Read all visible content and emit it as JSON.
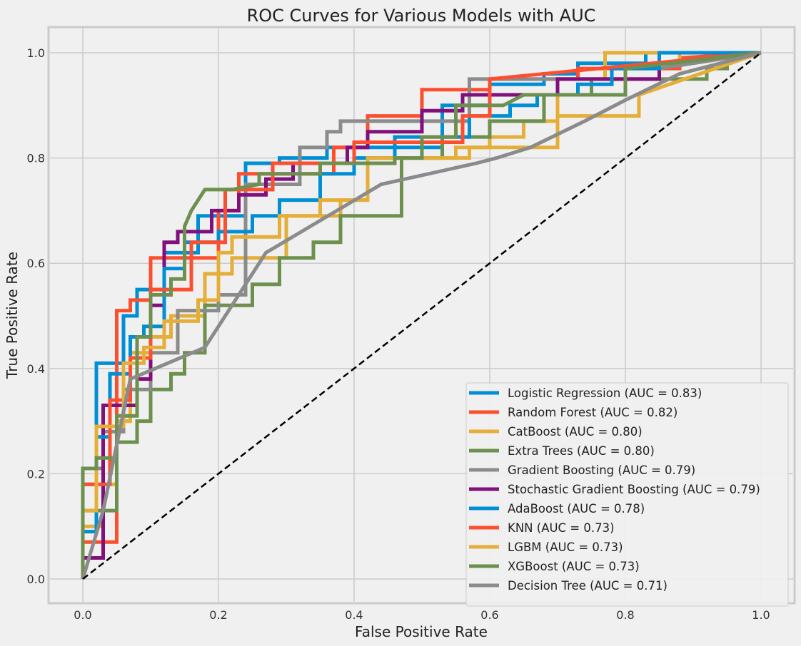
{
  "chart_data": {
    "type": "line",
    "title": "ROC Curves for Various Models with AUC",
    "xlabel": "False Positive Rate",
    "ylabel": "True Positive Rate",
    "xlim": [
      -0.05,
      1.05
    ],
    "ylim": [
      -0.05,
      1.05
    ],
    "xticks": [
      "0.0",
      "0.2",
      "0.4",
      "0.6",
      "0.8",
      "1.0"
    ],
    "yticks": [
      "0.0",
      "0.2",
      "0.4",
      "0.6",
      "0.8",
      "1.0"
    ],
    "grid": true,
    "legend_position": "lower-right",
    "reference_line": {
      "x": [
        0,
        1
      ],
      "y": [
        0,
        1
      ],
      "color": "#000000",
      "style": "dashed"
    },
    "series": [
      {
        "name": "Logistic Regression (AUC = 0.83)",
        "color": "#008fd5",
        "x": [
          0,
          0,
          0.02,
          0.02,
          0.06,
          0.06,
          0.08,
          0.08,
          0.12,
          0.12,
          0.17,
          0.17,
          0.24,
          0.24,
          0.29,
          0.29,
          0.36,
          0.36,
          0.53,
          0.53,
          0.6,
          0.6,
          0.68,
          0.68,
          0.73,
          0.73,
          0.83,
          0.83,
          1.0
        ],
        "y": [
          0,
          0.18,
          0.18,
          0.41,
          0.41,
          0.5,
          0.5,
          0.55,
          0.55,
          0.62,
          0.62,
          0.69,
          0.69,
          0.79,
          0.79,
          0.8,
          0.8,
          0.82,
          0.82,
          0.9,
          0.9,
          0.94,
          0.94,
          0.96,
          0.96,
          0.98,
          0.98,
          1.0,
          1.0
        ]
      },
      {
        "name": "Random Forest (AUC = 0.82)",
        "color": "#fc4f30",
        "x": [
          0,
          0,
          0.05,
          0.05,
          0.07,
          0.07,
          0.1,
          0.1,
          0.2,
          0.2,
          0.23,
          0.23,
          0.37,
          0.37,
          0.42,
          0.42,
          0.5,
          0.5,
          0.6,
          0.6,
          0.73,
          0.73,
          0.88,
          0.88,
          1.0
        ],
        "y": [
          0,
          0.07,
          0.07,
          0.51,
          0.51,
          0.53,
          0.53,
          0.61,
          0.61,
          0.7,
          0.7,
          0.77,
          0.77,
          0.82,
          0.82,
          0.88,
          0.88,
          0.93,
          0.93,
          0.95,
          0.95,
          0.97,
          0.97,
          0.99,
          1.0
        ]
      },
      {
        "name": "CatBoost (AUC = 0.80)",
        "color": "#e5ae38",
        "x": [
          0,
          0,
          0.03,
          0.03,
          0.05,
          0.05,
          0.07,
          0.07,
          0.1,
          0.1,
          0.13,
          0.13,
          0.18,
          0.18,
          0.22,
          0.22,
          0.3,
          0.3,
          0.38,
          0.38,
          0.42,
          0.42,
          0.57,
          0.57,
          0.6,
          0.6,
          0.65,
          0.65,
          0.7,
          0.7,
          0.77,
          0.77,
          0.88,
          0.88,
          1.0
        ],
        "y": [
          0,
          0.1,
          0.1,
          0.18,
          0.18,
          0.3,
          0.3,
          0.43,
          0.43,
          0.46,
          0.46,
          0.5,
          0.5,
          0.58,
          0.58,
          0.61,
          0.61,
          0.69,
          0.69,
          0.72,
          0.72,
          0.8,
          0.8,
          0.82,
          0.82,
          0.84,
          0.84,
          0.87,
          0.87,
          0.95,
          0.95,
          1.0,
          1.0,
          0.98,
          1.0
        ]
      },
      {
        "name": "Extra Trees (AUC = 0.80)",
        "color": "#6d904f",
        "x": [
          0,
          0,
          0.05,
          0.05,
          0.08,
          0.08,
          0.1,
          0.1,
          0.13,
          0.13,
          0.15,
          0.15,
          0.18,
          0.18,
          0.25,
          0.25,
          0.29,
          0.29,
          0.34,
          0.34,
          0.38,
          0.38,
          0.47,
          0.47,
          0.53,
          0.53,
          0.6,
          0.6,
          0.68,
          0.68,
          0.75,
          0.75,
          0.92,
          0.92,
          0.95,
          0.95,
          1.0
        ],
        "y": [
          0,
          0.13,
          0.13,
          0.26,
          0.26,
          0.3,
          0.3,
          0.36,
          0.36,
          0.39,
          0.39,
          0.43,
          0.43,
          0.52,
          0.52,
          0.56,
          0.56,
          0.61,
          0.61,
          0.64,
          0.64,
          0.69,
          0.69,
          0.8,
          0.8,
          0.84,
          0.84,
          0.87,
          0.87,
          0.92,
          0.92,
          0.95,
          0.95,
          0.97,
          0.97,
          1.0,
          1.0
        ]
      },
      {
        "name": "Gradient Boosting (AUC = 0.79)",
        "color": "#8b8b8b",
        "x": [
          0,
          0,
          0.03,
          0.03,
          0.06,
          0.06,
          0.1,
          0.1,
          0.14,
          0.14,
          0.2,
          0.2,
          0.24,
          0.24,
          0.32,
          0.32,
          0.36,
          0.36,
          0.38,
          0.38,
          0.57,
          0.57,
          0.85,
          0.85,
          1.0
        ],
        "y": [
          0,
          0.21,
          0.21,
          0.28,
          0.28,
          0.36,
          0.36,
          0.43,
          0.43,
          0.51,
          0.51,
          0.54,
          0.54,
          0.75,
          0.75,
          0.82,
          0.82,
          0.85,
          0.85,
          0.87,
          0.87,
          0.95,
          0.95,
          0.97,
          1.0
        ]
      },
      {
        "name": "Stochastic Gradient Boosting (AUC = 0.79)",
        "color": "#810f7c",
        "x": [
          0,
          0,
          0.03,
          0.03,
          0.08,
          0.08,
          0.1,
          0.1,
          0.12,
          0.12,
          0.14,
          0.14,
          0.19,
          0.19,
          0.23,
          0.23,
          0.27,
          0.27,
          0.31,
          0.31,
          0.39,
          0.39,
          0.42,
          0.42,
          0.5,
          0.5,
          0.56,
          0.56,
          0.7,
          0.7,
          0.85,
          0.85,
          1.0
        ],
        "y": [
          0,
          0.04,
          0.04,
          0.33,
          0.33,
          0.38,
          0.38,
          0.52,
          0.52,
          0.64,
          0.64,
          0.66,
          0.66,
          0.7,
          0.7,
          0.73,
          0.73,
          0.76,
          0.76,
          0.79,
          0.79,
          0.82,
          0.82,
          0.85,
          0.85,
          0.89,
          0.89,
          0.92,
          0.92,
          0.95,
          0.95,
          0.98,
          1.0
        ]
      },
      {
        "name": "AdaBoost (AUC = 0.78)",
        "color": "#008fd5",
        "x": [
          0,
          0,
          0.02,
          0.02,
          0.04,
          0.04,
          0.07,
          0.07,
          0.09,
          0.09,
          0.12,
          0.12,
          0.15,
          0.15,
          0.2,
          0.2,
          0.25,
          0.25,
          0.29,
          0.29,
          0.35,
          0.35,
          0.4,
          0.4,
          0.46,
          0.46,
          0.57,
          0.57,
          0.63,
          0.63,
          0.67,
          0.67,
          0.73,
          0.73,
          0.78,
          0.78,
          0.85,
          0.85,
          1.0
        ],
        "y": [
          0,
          0.09,
          0.09,
          0.27,
          0.27,
          0.39,
          0.39,
          0.46,
          0.46,
          0.48,
          0.48,
          0.59,
          0.59,
          0.64,
          0.64,
          0.66,
          0.66,
          0.69,
          0.69,
          0.72,
          0.72,
          0.77,
          0.77,
          0.8,
          0.8,
          0.84,
          0.84,
          0.88,
          0.88,
          0.9,
          0.9,
          0.92,
          0.92,
          0.94,
          0.94,
          0.97,
          0.97,
          1.0,
          1.0
        ]
      },
      {
        "name": "KNN (AUC = 0.73)",
        "color": "#fc4f30",
        "x": [
          0,
          0,
          0.04,
          0.04,
          0.07,
          0.07,
          0.1,
          0.1,
          0.16,
          0.16,
          0.21,
          0.21,
          0.28,
          0.28,
          0.4,
          0.4,
          0.56,
          0.56,
          0.6,
          0.6,
          1.0
        ],
        "y": [
          0,
          0.18,
          0.18,
          0.34,
          0.34,
          0.42,
          0.42,
          0.55,
          0.55,
          0.64,
          0.64,
          0.74,
          0.74,
          0.79,
          0.79,
          0.83,
          0.83,
          0.88,
          0.88,
          0.95,
          1.0
        ]
      },
      {
        "name": "LGBM (AUC = 0.73)",
        "color": "#e5ae38",
        "x": [
          0,
          0,
          0.02,
          0.02,
          0.06,
          0.06,
          0.09,
          0.09,
          0.12,
          0.12,
          0.17,
          0.17,
          0.2,
          0.2,
          0.22,
          0.22,
          0.29,
          0.29,
          0.35,
          0.35,
          0.42,
          0.42,
          0.55,
          0.55,
          0.7,
          0.7,
          0.82,
          0.82,
          1.0
        ],
        "y": [
          0,
          0.13,
          0.13,
          0.29,
          0.29,
          0.41,
          0.41,
          0.44,
          0.44,
          0.49,
          0.49,
          0.53,
          0.53,
          0.62,
          0.62,
          0.65,
          0.65,
          0.69,
          0.69,
          0.72,
          0.72,
          0.8,
          0.8,
          0.82,
          0.82,
          0.88,
          0.88,
          0.92,
          1.0
        ]
      },
      {
        "name": "XGBoost (AUC = 0.73)",
        "color": "#6d904f",
        "x": [
          0,
          0,
          0.02,
          0.02,
          0.05,
          0.05,
          0.08,
          0.08,
          0.1,
          0.1,
          0.13,
          0.13,
          0.15,
          0.15,
          0.16,
          0.18,
          0.2,
          0.22,
          0.26,
          0.26,
          0.35,
          0.35,
          0.46,
          0.46,
          0.5,
          0.5,
          0.55,
          0.55,
          0.62,
          0.65,
          0.8,
          0.8,
          1.0
        ],
        "y": [
          0,
          0.21,
          0.21,
          0.23,
          0.23,
          0.31,
          0.31,
          0.46,
          0.46,
          0.54,
          0.54,
          0.57,
          0.57,
          0.67,
          0.7,
          0.74,
          0.74,
          0.74,
          0.75,
          0.77,
          0.77,
          0.79,
          0.79,
          0.8,
          0.8,
          0.84,
          0.84,
          0.9,
          0.9,
          0.92,
          0.92,
          0.97,
          1.0
        ]
      },
      {
        "name": "Decision Tree (AUC = 0.71)",
        "color": "#8b8b8b",
        "x": [
          0,
          0.03,
          0.07,
          0.18,
          0.27,
          0.44,
          0.58,
          0.61,
          0.66,
          0.74,
          0.8,
          0.88,
          1.0
        ],
        "y": [
          0,
          0.13,
          0.38,
          0.44,
          0.62,
          0.75,
          0.79,
          0.8,
          0.82,
          0.87,
          0.91,
          0.96,
          1.0
        ]
      }
    ]
  }
}
